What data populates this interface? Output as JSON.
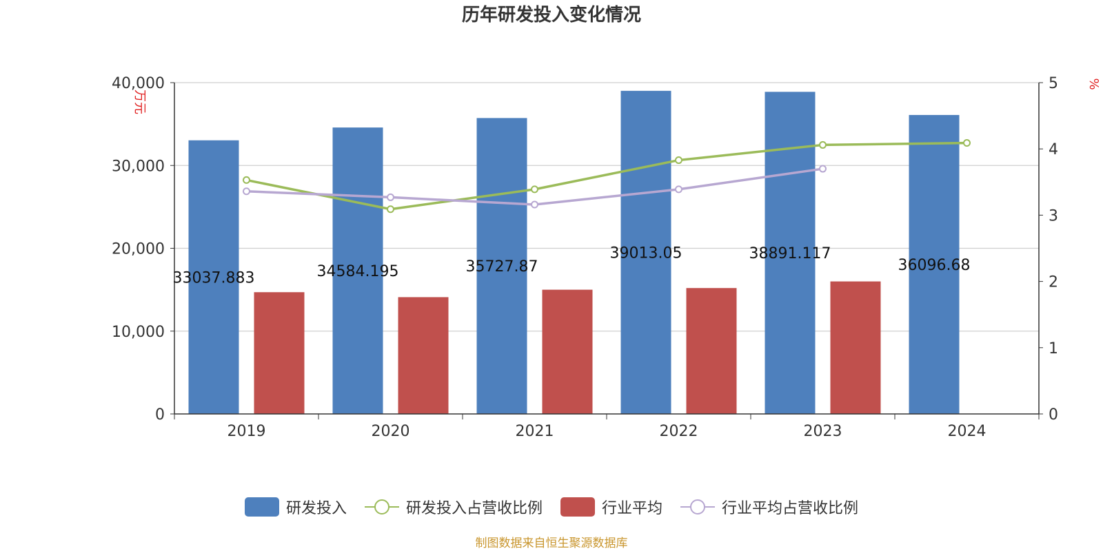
{
  "chart_data": {
    "type": "bar",
    "title": "历年研发投入变化情况",
    "categories": [
      "2019",
      "2020",
      "2021",
      "2022",
      "2023",
      "2024"
    ],
    "y_left": {
      "label": "万元",
      "ylim": [
        0,
        40000
      ],
      "ticks": [
        "0",
        "10,000",
        "20,000",
        "30,000",
        "40,000"
      ],
      "tick_values": [
        0,
        10000,
        20000,
        30000,
        40000
      ]
    },
    "y_right": {
      "label": "%",
      "ylim": [
        0,
        5
      ],
      "ticks": [
        "0",
        "1",
        "2",
        "3",
        "4",
        "5"
      ],
      "tick_values": [
        0,
        1,
        2,
        3,
        4,
        5
      ]
    },
    "grid": true,
    "legend_position": "bottom-center",
    "series": [
      {
        "name": "研发投入",
        "kind": "bar",
        "axis": "left",
        "color": "#4e80bd",
        "values": [
          33037.883,
          34584.195,
          35727.87,
          39013.05,
          38891.117,
          36096.68
        ],
        "data_labels": [
          "33037.883",
          "34584.195",
          "35727.87",
          "39013.05",
          "38891.117",
          "36096.68"
        ]
      },
      {
        "name": "研发投入占营收比例",
        "kind": "line",
        "axis": "right",
        "color": "#9bbb59",
        "values": [
          3.53,
          3.09,
          3.39,
          3.83,
          4.06,
          4.09
        ]
      },
      {
        "name": "行业平均",
        "kind": "bar",
        "axis": "left",
        "color": "#c0504d",
        "values": [
          14700,
          14100,
          15000,
          15200,
          16000,
          null
        ]
      },
      {
        "name": "行业平均占营收比例",
        "kind": "line",
        "axis": "right",
        "color": "#b7a7d1",
        "values": [
          3.36,
          3.27,
          3.16,
          3.39,
          3.7,
          null
        ]
      }
    ]
  },
  "footer": {
    "source": "制图数据来自恒生聚源数据库"
  }
}
